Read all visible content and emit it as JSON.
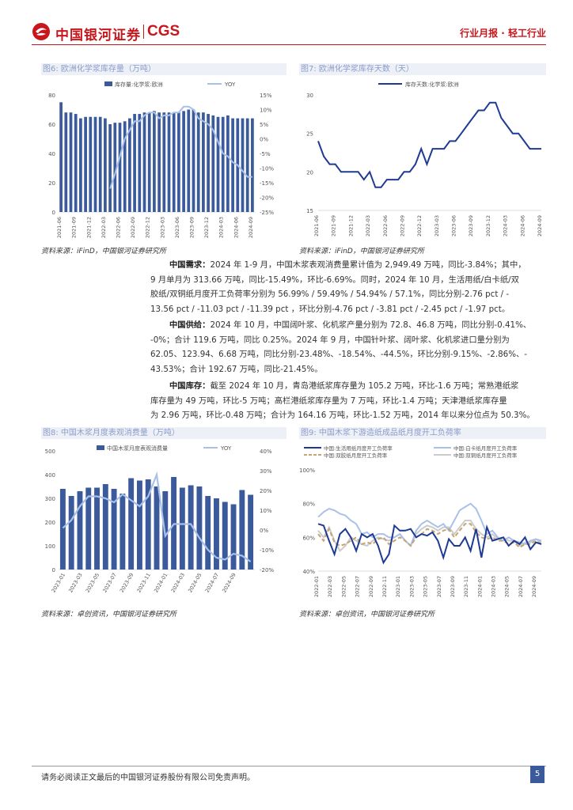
{
  "header": {
    "logo_cn": "中国银河证券",
    "logo_en": "CGS",
    "section": "行业月报 · 轻工行业"
  },
  "fig6": {
    "title": "图6: 欧洲化学浆库存量（万吨）",
    "source": "资料来源：iFinD，中国银河证券研究所",
    "chart_data": {
      "type": "bar+line",
      "legend": [
        "库存量:化学浆:欧洲",
        "YOY"
      ],
      "categories": [
        "2021-06",
        "2021-07",
        "2021-08",
        "2021-09",
        "2021-10",
        "2021-11",
        "2021-12",
        "2022-01",
        "2022-02",
        "2022-03",
        "2022-04",
        "2022-05",
        "2022-06",
        "2022-07",
        "2022-08",
        "2022-09",
        "2022-10",
        "2022-11",
        "2022-12",
        "2023-01",
        "2023-02",
        "2023-03",
        "2023-04",
        "2023-05",
        "2023-06",
        "2023-07",
        "2023-08",
        "2023-09",
        "2023-10",
        "2023-11",
        "2023-12",
        "2024-01",
        "2024-02",
        "2024-03",
        "2024-04",
        "2024-05",
        "2024-06",
        "2024-07",
        "2024-08",
        "2024-09"
      ],
      "x_tick_labels": [
        "2021-06",
        "2021-09",
        "2021-12",
        "2022-03",
        "2022-06",
        "2022-09",
        "2022-12",
        "2023-03",
        "2023-06",
        "2023-09",
        "2023-12",
        "2024-03",
        "2024-06",
        "2024-09"
      ],
      "bars": [
        75,
        68,
        68,
        67,
        64,
        65,
        65,
        65,
        65,
        64,
        60,
        61,
        61,
        62,
        64,
        67,
        67,
        68,
        68,
        69,
        68,
        68,
        68,
        68,
        68,
        69,
        70,
        70,
        68,
        68,
        67,
        66,
        65,
        65,
        66,
        64,
        64,
        64,
        64,
        64
      ],
      "yoy": [
        null,
        null,
        null,
        null,
        null,
        null,
        null,
        null,
        null,
        null,
        -17,
        -12,
        -6,
        0,
        3,
        6,
        6,
        8,
        9,
        9,
        7,
        8,
        8,
        9,
        9,
        11,
        11,
        10,
        7,
        6,
        5,
        3,
        -1,
        -5,
        -6,
        -8,
        -9,
        -11,
        -13,
        -13
      ],
      "y_left": [
        0,
        20,
        40,
        60,
        80
      ],
      "y_right": [
        "15%",
        "10%",
        "5%",
        "0%",
        "-5%",
        "-10%",
        "-15%",
        "-20%",
        "-25%"
      ]
    }
  },
  "fig7": {
    "title": "图7: 欧洲化学浆库存天数（天）",
    "source": "资料来源：iFinD，中国银河证券研究所",
    "chart_data": {
      "type": "line",
      "legend": [
        "库存天数:化学浆:欧洲"
      ],
      "x_tick_labels": [
        "2021-06",
        "2021-09",
        "2021-12",
        "2022-03",
        "2022-06",
        "2022-09",
        "2022-12",
        "2023-03",
        "2023-06",
        "2023-09",
        "2023-12",
        "2024-03",
        "2024-06",
        "2024-09"
      ],
      "values": [
        24,
        22,
        21,
        21,
        20,
        20,
        20,
        20,
        19,
        20,
        18,
        18,
        19,
        19,
        19,
        20,
        20,
        21,
        23,
        21,
        23,
        23,
        23,
        24,
        24,
        25,
        26,
        27,
        28,
        28,
        29,
        29,
        27,
        26,
        25,
        25,
        24,
        23,
        23,
        23
      ],
      "y_ticks": [
        15,
        20,
        25,
        30
      ]
    }
  },
  "text": {
    "p1_label": "中国需求：",
    "p1_lines": [
      "2024 年 1-9 月，中国木浆表观消费量累计值为 2,949.49 万吨，同比-3.84%；其中，",
      "9 月单月为 313.66 万吨，同比-15.49%，环比-6.69%。同时，2024 年 10 月，生活用纸/白卡纸/双",
      "胶纸/双铜纸月度开工负荷率分别为 56.99% / 59.49% / 54.94% / 57.1%，同比分别-2.76 pct / -",
      "13.56 pct / -11.03 pct / -11.39 pct ，环比分别-4.76 pct / -3.81 pct / -2.45 pct / -1.97 pct。"
    ],
    "p2_label": "中国供给：",
    "p2_lines": [
      "2024 年 10 月，中国阔叶浆、化机浆产量分别为 72.8、46.8 万吨，同比分别-0.41%、",
      "-0%；合计 119.6 万吨，同比 0.25%。2024 年 9 月，中国针叶浆、阔叶浆、化机浆进口量分别为",
      "62.05、123.94、6.68 万吨，同比分别-23.48%、-18.54%、-44.5%，环比分别-9.15%、-2.86%、-",
      "43.53%；合计 192.67 万吨，同比-21.45%。"
    ],
    "p3_label": "中国库存：",
    "p3_lines": [
      "截至 2024 年 10 月，青岛港纸浆库存量为 105.2 万吨，环比-1.6 万吨；常熟港纸浆",
      "库存量为 49 万吨，环比-5 万吨；高栏港纸浆库存量为 7 万吨，环比-1.4 万吨；天津港纸浆库存量",
      "为 2.96 万吨，环比-0.48 万吨；合计为 164.16 万吨，环比-1.52 万吨，2014 年以来分位点为 50.3%。"
    ]
  },
  "fig8": {
    "title": "图8: 中国木浆月度表观消费量（万吨）",
    "source": "资料来源：卓创资讯，中国银河证券研究所",
    "chart_data": {
      "type": "bar+line",
      "legend": [
        "中国木浆月度表观消费量",
        "YOY"
      ],
      "x_tick_labels": [
        "2023-01",
        "2023-03",
        "2023-05",
        "2023-07",
        "2023-09",
        "2023-11",
        "2024-01",
        "2024-03",
        "2024-05",
        "2024-07",
        "2024-09"
      ],
      "bars": [
        340,
        310,
        330,
        345,
        345,
        360,
        340,
        320,
        385,
        375,
        380,
        350,
        330,
        390,
        345,
        355,
        350,
        310,
        300,
        285,
        275,
        335,
        315
      ],
      "yoy": [
        1,
        5,
        12,
        17,
        17,
        16,
        14,
        18,
        15,
        12,
        17,
        28,
        -3,
        3,
        3,
        3,
        -4,
        -10,
        -14,
        -15,
        -12,
        -13,
        -16
      ],
      "y_left": [
        0,
        100,
        200,
        300,
        400,
        500
      ],
      "y_right": [
        "40%",
        "30%",
        "20%",
        "10%",
        "0%",
        "-10%",
        "-20%"
      ]
    }
  },
  "fig9": {
    "title": "图9: 中国木浆下游造纸成品纸月度开工负荷率",
    "source": "资料来源：卓创资讯，中国银河证券研究所",
    "chart_data": {
      "type": "line",
      "legend": [
        "中国:生活用纸月度开工负荷率",
        "中国:白卡纸月度开工负荷率",
        "中国:双胶纸月度开工负荷率",
        "中国:双铜纸月度开工负荷率"
      ],
      "colors": [
        "#1f3a93",
        "#a9c1e8",
        "#c4a574",
        "#cccccc"
      ],
      "x_tick_labels": [
        "2022-01",
        "2022-03",
        "2022-05",
        "2022-07",
        "2022-09",
        "2022-11",
        "2023-01",
        "2023-03",
        "2023-05",
        "2023-07",
        "2023-09",
        "2023-11",
        "2024-01",
        "2024-03",
        "2024-05",
        "2024-07",
        "2024-09"
      ],
      "series": [
        {
          "name": "中国:生活用纸月度开工负荷率",
          "values": [
            68,
            67,
            58,
            50,
            62,
            65,
            60,
            52,
            62,
            60,
            62,
            55,
            45,
            50,
            67,
            64,
            64,
            65,
            60,
            62,
            61,
            63,
            58,
            48,
            59,
            55,
            55,
            60,
            52,
            65,
            48,
            66,
            58,
            59,
            60,
            55,
            58,
            56,
            60,
            53,
            57,
            56
          ]
        },
        {
          "name": "中国:白卡纸月度开工负荷率",
          "values": [
            72,
            75,
            77,
            76,
            74,
            73,
            70,
            68,
            62,
            63,
            60,
            62,
            62,
            60,
            60,
            62,
            58,
            55,
            64,
            68,
            70,
            68,
            66,
            68,
            64,
            70,
            76,
            78,
            80,
            77,
            70,
            62,
            64,
            60,
            58,
            60,
            58,
            57,
            56,
            58,
            59,
            58
          ]
        },
        {
          "name": "中国:双胶纸月度开工负荷率",
          "values": [
            62,
            58,
            65,
            57,
            55,
            56,
            58,
            60,
            56,
            57,
            56,
            59,
            60,
            56,
            58,
            60,
            58,
            55,
            60,
            62,
            65,
            64,
            62,
            64,
            65,
            60,
            64,
            68,
            68,
            63,
            60,
            59,
            60,
            58,
            58,
            56,
            57,
            54,
            56,
            56,
            58,
            56
          ]
        },
        {
          "name": "中国:双铜纸月度开工负荷率",
          "values": [
            64,
            60,
            66,
            58,
            52,
            55,
            60,
            58,
            56,
            55,
            58,
            60,
            59,
            58,
            60,
            62,
            58,
            55,
            62,
            65,
            67,
            66,
            64,
            66,
            66,
            62,
            66,
            70,
            70,
            65,
            62,
            60,
            62,
            59,
            60,
            58,
            58,
            55,
            57,
            57,
            59,
            57
          ]
        }
      ],
      "y_ticks": [
        "40%",
        "60%",
        "80%",
        "100%"
      ]
    }
  },
  "footer": {
    "disclaimer": "请务必阅读正文最后的中国银河证券股份有限公司免责声明。",
    "page": "5"
  }
}
